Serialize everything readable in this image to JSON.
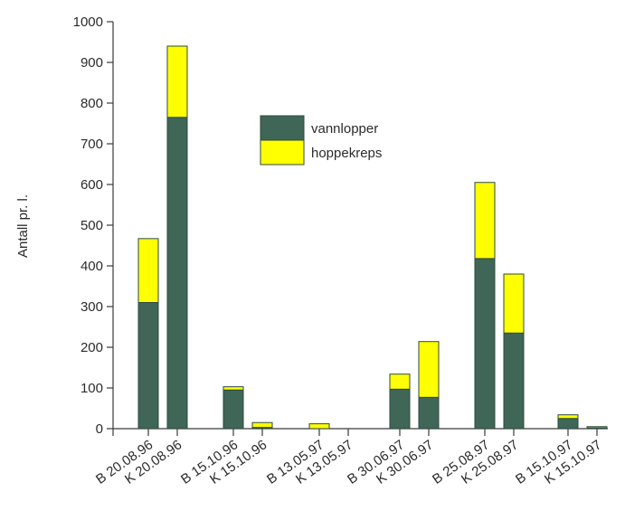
{
  "chart_data": {
    "type": "bar",
    "stacked": true,
    "title": "",
    "xlabel": "",
    "ylabel": "Antall pr. l.",
    "ylim": [
      0,
      1000
    ],
    "yticks": [
      0,
      100,
      200,
      300,
      400,
      500,
      600,
      700,
      800,
      900,
      1000
    ],
    "categories": [
      "B 20.08.96",
      "K 20.08.96",
      "B 15.10.96",
      "K 15.10.96",
      "B 13.05.97",
      "K 13.05.97",
      "B 30.06.97",
      "K 30.06.97",
      "B 25.08.97",
      "K 25.08.97",
      "B 15.10.97",
      "K 15.10.97"
    ],
    "series": [
      {
        "name": "vannlopper",
        "color": "#3f6657",
        "values": [
          310,
          765,
          95,
          3,
          0,
          0,
          97,
          77,
          418,
          235,
          25,
          2
        ]
      },
      {
        "name": "hoppekreps",
        "color": "#ffff00",
        "values": [
          157,
          175,
          8,
          12,
          12,
          0,
          37,
          137,
          187,
          145,
          9,
          3
        ]
      }
    ],
    "legend_position": "upper-center",
    "grid": false
  }
}
